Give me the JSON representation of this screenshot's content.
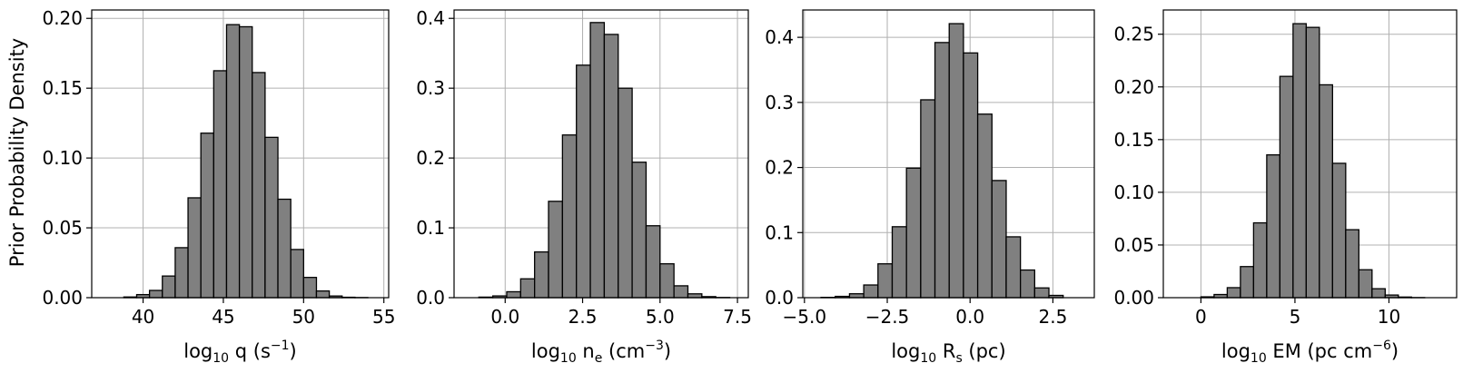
{
  "figure": {
    "ylabel": "Prior Probability Density"
  },
  "chart_data": [
    {
      "type": "bar",
      "title": "",
      "xlabel": {
        "main": "log",
        "sub": "10",
        "rest": " q (s",
        "sup": "−1",
        "tail": ")"
      },
      "ylabel": "Prior Probability Density",
      "xlim": [
        36.8,
        55.3
      ],
      "ylim": [
        0,
        0.206
      ],
      "xticks": [
        40,
        45,
        50,
        55
      ],
      "xtick_labels": [
        "40",
        "45",
        "50",
        "55"
      ],
      "yticks": [
        0.0,
        0.05,
        0.1,
        0.15,
        0.2
      ],
      "ytick_labels": [
        "0.00",
        "0.05",
        "0.10",
        "0.15",
        "0.20"
      ],
      "grid": true,
      "bin_edges": [
        38.8,
        39.6,
        40.4,
        41.2,
        42.0,
        42.8,
        43.6,
        44.4,
        45.2,
        46.0,
        46.8,
        47.6,
        48.4,
        49.2,
        50.0,
        50.8,
        51.6,
        52.4,
        53.2,
        54.0
      ],
      "values": [
        0.0005,
        0.0022,
        0.0052,
        0.0155,
        0.0358,
        0.0715,
        0.1178,
        0.1625,
        0.1955,
        0.194,
        0.1612,
        0.1148,
        0.0705,
        0.0345,
        0.0145,
        0.0048,
        0.0012,
        0.0003,
        0.0001
      ]
    },
    {
      "type": "bar",
      "title": "",
      "xlabel": {
        "main": "log",
        "sub": "10",
        "rest": " n",
        "sub2": "e",
        "rest2": " (cm",
        "sup": "−3",
        "tail": ")"
      },
      "xlim": [
        -1.65,
        7.85
      ],
      "ylim": [
        0,
        0.412
      ],
      "xticks": [
        0.0,
        2.5,
        5.0,
        7.5
      ],
      "xtick_labels": [
        "0.0",
        "2.5",
        "5.0",
        "7.5"
      ],
      "yticks": [
        0.0,
        0.1,
        0.2,
        0.3,
        0.4
      ],
      "ytick_labels": [
        "0.0",
        "0.1",
        "0.2",
        "0.3",
        "0.4"
      ],
      "grid": true,
      "bin_edges": [
        -0.85,
        -0.4,
        0.05,
        0.5,
        0.95,
        1.4,
        1.85,
        2.3,
        2.75,
        3.2,
        3.65,
        4.1,
        4.55,
        5.0,
        5.45,
        5.9,
        6.35,
        6.8,
        7.25
      ],
      "values": [
        0.0008,
        0.0025,
        0.0085,
        0.027,
        0.0655,
        0.138,
        0.233,
        0.333,
        0.394,
        0.377,
        0.3,
        0.194,
        0.103,
        0.0485,
        0.017,
        0.0055,
        0.0015,
        0.0003
      ]
    },
    {
      "type": "bar",
      "title": "",
      "xlabel": {
        "main": "log",
        "sub": "10",
        "rest": " R",
        "sub2": "s",
        "rest2": " (pc)",
        "tail": ""
      },
      "xlim": [
        -5.05,
        3.75
      ],
      "ylim": [
        0,
        0.442
      ],
      "xticks": [
        -5.0,
        -2.5,
        0.0,
        2.5
      ],
      "xtick_labels": [
        "−5.0",
        "−2.5",
        "0.0",
        "2.5"
      ],
      "yticks": [
        0.0,
        0.1,
        0.2,
        0.3,
        0.4
      ],
      "ytick_labels": [
        "0.0",
        "0.1",
        "0.2",
        "0.3",
        "0.4"
      ],
      "grid": true,
      "bin_edges": [
        -4.5,
        -4.07,
        -3.64,
        -3.21,
        -2.78,
        -2.35,
        -1.92,
        -1.49,
        -1.06,
        -0.63,
        -0.2,
        0.23,
        0.66,
        1.09,
        1.52,
        1.95,
        2.38,
        2.81
      ],
      "values": [
        0.0005,
        0.002,
        0.006,
        0.0195,
        0.052,
        0.109,
        0.199,
        0.304,
        0.392,
        0.421,
        0.376,
        0.282,
        0.18,
        0.0935,
        0.0425,
        0.015,
        0.0035
      ]
    },
    {
      "type": "bar",
      "title": "",
      "xlabel": {
        "main": "log",
        "sub": "10",
        "rest": " EM (pc cm",
        "sup": "−6",
        "tail": ")"
      },
      "xlim": [
        -2.0,
        13.6
      ],
      "ylim": [
        0,
        0.273
      ],
      "xticks": [
        0,
        5,
        10
      ],
      "xtick_labels": [
        "0",
        "5",
        "10"
      ],
      "yticks": [
        0.0,
        0.05,
        0.1,
        0.15,
        0.2,
        0.25
      ],
      "ytick_labels": [
        "0.00",
        "0.05",
        "0.10",
        "0.15",
        "0.20",
        "0.25"
      ],
      "grid": true,
      "bin_edges": [
        0.0,
        0.7,
        1.4,
        2.1,
        2.8,
        3.5,
        4.2,
        4.9,
        5.6,
        6.3,
        7.0,
        7.7,
        8.4,
        9.1,
        9.8,
        10.5,
        11.2,
        11.9
      ],
      "values": [
        0.0008,
        0.003,
        0.0095,
        0.0295,
        0.071,
        0.1355,
        0.21,
        0.26,
        0.2565,
        0.202,
        0.1275,
        0.0645,
        0.0265,
        0.0085,
        0.0025,
        0.0006,
        0.0001
      ]
    }
  ],
  "colors": {
    "bar_fill": "#808080",
    "bar_edge": "#000000",
    "grid": "#b0b0b0"
  }
}
